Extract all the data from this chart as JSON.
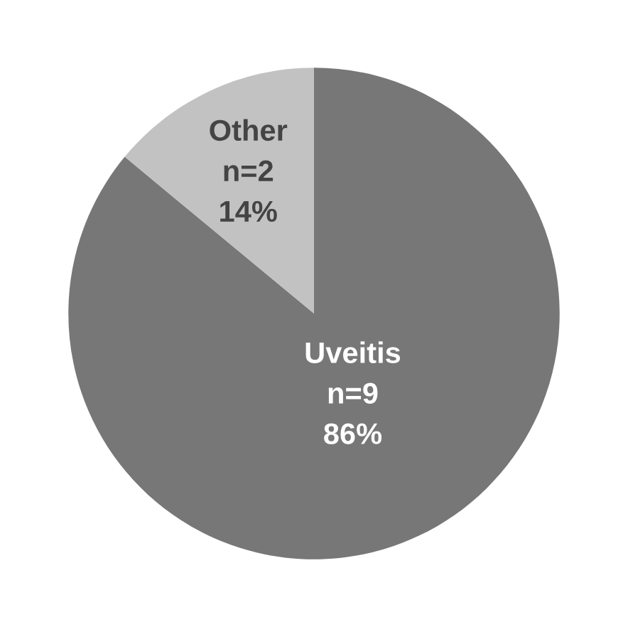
{
  "chart_data": {
    "type": "pie",
    "categories": [
      "Uveitis",
      "Other"
    ],
    "values": [
      86,
      14
    ],
    "colors": [
      "#777777",
      "#c2c2c2"
    ],
    "value_labels": [
      "n=9\n86%",
      "n=2\n14%"
    ]
  }
}
